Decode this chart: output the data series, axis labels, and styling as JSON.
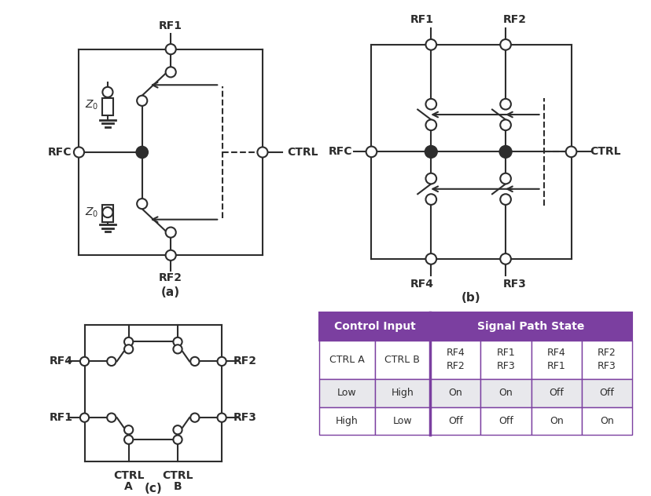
{
  "title_a": "(a)",
  "title_b": "(b)",
  "title_c": "(c)",
  "bg_color": "#ffffff",
  "line_color": "#2d2d2d",
  "purple_color": "#7b3fa0",
  "table_header_color": "#7b3fa0",
  "table_header_text": "#ffffff",
  "table_alt_row": "#e8e8ec",
  "table_white_row": "#ffffff",
  "table_border_color": "#7b3fa0",
  "label_fontsize": 10,
  "caption_fontsize": 11,
  "table_fontsize": 9
}
